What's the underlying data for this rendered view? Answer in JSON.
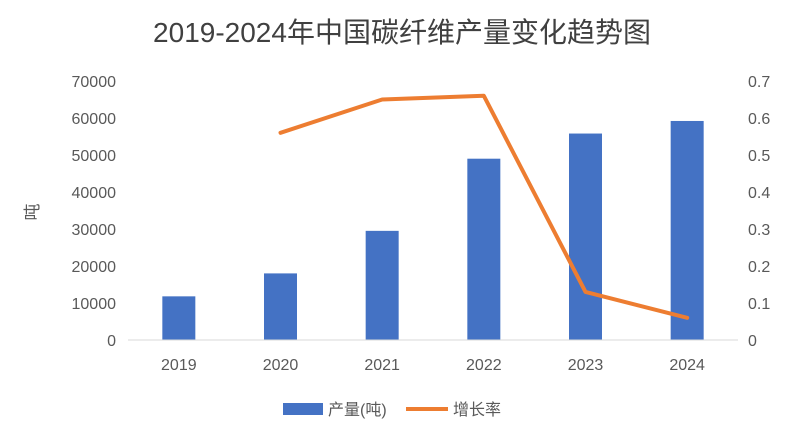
{
  "chart_data": {
    "type": "bar",
    "title": "2019-2024年中国碳纤维产量变化趋势图",
    "categories": [
      "2019",
      "2020",
      "2021",
      "2022",
      "2023",
      "2024"
    ],
    "series": [
      {
        "name": "产量(吨)",
        "kind": "bar",
        "axis": "left",
        "values": [
          11800,
          18000,
          29500,
          49000,
          55800,
          59200
        ]
      },
      {
        "name": "增长率",
        "kind": "line",
        "axis": "right",
        "values": [
          null,
          0.56,
          0.65,
          0.66,
          0.13,
          0.06
        ]
      }
    ],
    "ylabel": "吨",
    "ylim": [
      0,
      70000
    ],
    "yticks": [
      "0",
      "10000",
      "20000",
      "30000",
      "40000",
      "50000",
      "60000",
      "70000"
    ],
    "y2lim": [
      0,
      0.7
    ],
    "y2ticks": [
      "0",
      "0.1",
      "0.2",
      "0.3",
      "0.4",
      "0.5",
      "0.6",
      "0.7"
    ],
    "grid": false,
    "legend": "bottom",
    "colors": {
      "bar": "#4472C4",
      "line": "#ED7D31",
      "axis": "#D9D9D9"
    }
  }
}
